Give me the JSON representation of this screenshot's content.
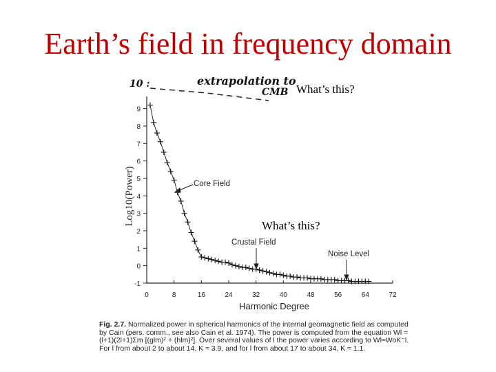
{
  "slide": {
    "title": "Earth’s field in frequency domain",
    "question_top": "What’s this?",
    "question_mid": "What’s this?"
  },
  "handwriting": {
    "ten_label": "10 :",
    "extrapolation": "extrapolation to",
    "cmb": "CMB"
  },
  "annotations": {
    "core_field": "Core Field",
    "crustal_field": "Crustal Field",
    "noise_level": "Noise Level"
  },
  "caption": {
    "fig_label": "Fig. 2.7.",
    "text": "Normalized power in spherical harmonics of the internal geomagnetic field as computed by Cain (pers. comm., see also Cain et al. 1974). The power is computed from the equation Wl = (l+1)(2l+1)Σm [(glm)² + (hlm)²]. Over several values of l the power varies according to Wl≈WoK⁻l. For l from about 2 to about 14, K ≈ 3.9, and for l from about 17 to about 34, K ≈ 1.1."
  },
  "chart_data": {
    "type": "scatter",
    "xlabel": "Harmonic Degree",
    "ylabel": "Log10(Power)",
    "xlim": [
      0,
      72
    ],
    "ylim": [
      -1,
      9.3
    ],
    "x_ticks": [
      0,
      8,
      16,
      24,
      32,
      40,
      48,
      56,
      64,
      72
    ],
    "x_tick_labels": [
      "0",
      "8",
      "16",
      "24",
      "32",
      "40",
      "48",
      "56",
      "64",
      "72"
    ],
    "y_ticks": [
      -1,
      0,
      1,
      2,
      3,
      4,
      5,
      6,
      7,
      8,
      9
    ],
    "y_tick_labels": [
      "-1",
      "0",
      "1",
      "2",
      "3",
      "4",
      "5",
      "6",
      "7",
      "8",
      "9"
    ],
    "series": [
      {
        "x": [
          1,
          2,
          3,
          4,
          5,
          6,
          7,
          8,
          9,
          10,
          11,
          12,
          13,
          14,
          15,
          16,
          17,
          18,
          19,
          20,
          21,
          22,
          23,
          24,
          25,
          26,
          27,
          28,
          29,
          30,
          31,
          32,
          33,
          34,
          35,
          36,
          37,
          38,
          39,
          40,
          41,
          42,
          43,
          44,
          45,
          46,
          47,
          48,
          49,
          50,
          51,
          52,
          53,
          54,
          55,
          56,
          57,
          58,
          59,
          60,
          61,
          62,
          63,
          64,
          65
        ],
        "y": [
          9.2,
          8.2,
          7.6,
          7.1,
          6.5,
          5.9,
          5.4,
          4.9,
          4.2,
          3.7,
          3.0,
          2.5,
          1.9,
          1.4,
          0.9,
          0.5,
          0.45,
          0.4,
          0.35,
          0.3,
          0.25,
          0.2,
          0.2,
          0.15,
          0.05,
          0.0,
          -0.05,
          -0.1,
          -0.1,
          -0.15,
          -0.2,
          -0.2,
          -0.25,
          -0.3,
          -0.35,
          -0.4,
          -0.45,
          -0.5,
          -0.5,
          -0.55,
          -0.6,
          -0.6,
          -0.65,
          -0.65,
          -0.7,
          -0.7,
          -0.7,
          -0.75,
          -0.75,
          -0.75,
          -0.75,
          -0.8,
          -0.8,
          -0.8,
          -0.8,
          -0.85,
          -0.85,
          -0.85,
          -0.85,
          -0.9,
          -0.9,
          -0.9,
          -0.9,
          -0.9,
          -0.9
        ]
      }
    ],
    "extrapolation_line": {
      "from_y": 10,
      "note": "dashed"
    },
    "marker": "plus",
    "color": "#000000"
  }
}
